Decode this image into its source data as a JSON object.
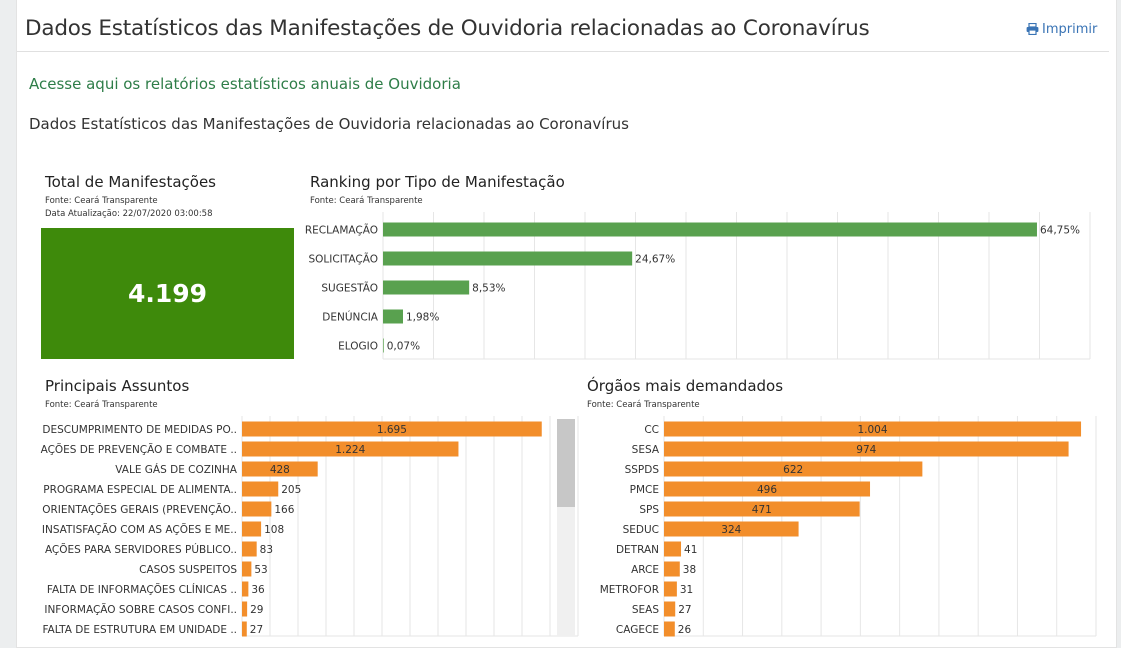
{
  "header": {
    "title": "Dados Estatísticos das Manifestações de Ouvidoria relacionadas ao Coronavírus",
    "print_label": "Imprimir"
  },
  "link_text": "Acesse aqui os relatórios estatísticos anuais de Ouvidoria",
  "subtitle": "Dados Estatísticos das Manifestações de Ouvidoria relacionadas ao Coronavírus",
  "total": {
    "title": "Total de Manifestações",
    "source": "Fonte: Ceará Transparente",
    "updated": "Data Atualização: 22/07/2020 03:00:58",
    "value": "4.199",
    "color": "#3e8a0b"
  },
  "ranking_meta": {
    "title": "Ranking por Tipo de Manifestação",
    "source": "Fonte: Ceará Transparente"
  },
  "assuntos_meta": {
    "title": "Principais Assuntos",
    "source": "Fonte: Ceará Transparente"
  },
  "orgaos_meta": {
    "title": "Órgãos mais demandados",
    "source": "Fonte: Ceará Transparente"
  },
  "chart_data": [
    {
      "type": "bar",
      "orientation": "horizontal",
      "title": "Ranking por Tipo de Manifestação",
      "categories": [
        "RECLAMAÇÃO",
        "SOLICITAÇÃO",
        "SUGESTÃO",
        "DENÚNCIA",
        "ELOGIO"
      ],
      "values": [
        64.75,
        24.67,
        8.53,
        1.98,
        0.07
      ],
      "labels": [
        "64,75%",
        "24,67%",
        "8,53%",
        "1,98%",
        "0,07%"
      ],
      "xlim": [
        0,
        70
      ],
      "color": "#59a14f",
      "grid": true
    },
    {
      "type": "bar",
      "orientation": "horizontal",
      "title": "Principais Assuntos",
      "categories": [
        "DESCUMPRIMENTO DE MEDIDAS PO..",
        "AÇÕES DE PREVENÇÃO E COMBATE ..",
        "VALE GÁS DE COZINHA",
        "PROGRAMA ESPECIAL DE ALIMENTA..",
        "ORIENTAÇÕES GERAIS (PREVENÇÃO..",
        "INSATISFAÇÃO COM AS AÇÕES E ME..",
        "AÇÕES PARA SERVIDORES PÚBLICO..",
        "CASOS SUSPEITOS",
        "FALTA DE INFORMAÇÕES CLÍNICAS ..",
        "INFORMAÇÃO SOBRE CASOS CONFI..",
        "FALTA DE ESTRUTURA EM UNIDADE .."
      ],
      "values": [
        1695,
        1224,
        428,
        205,
        166,
        108,
        83,
        53,
        36,
        29,
        27
      ],
      "labels": [
        "1.695",
        "1.224",
        "428",
        "205",
        "166",
        "108",
        "83",
        "53",
        "36",
        "29",
        "27"
      ],
      "xlim": [
        0,
        1900
      ],
      "color": "#f28e2b",
      "grid": true
    },
    {
      "type": "bar",
      "orientation": "horizontal",
      "title": "Órgãos mais demandados",
      "categories": [
        "CC",
        "SESA",
        "SSPDS",
        "PMCE",
        "SPS",
        "SEDUC",
        "DETRAN",
        "ARCE",
        "METROFOR",
        "SEAS",
        "CAGECE"
      ],
      "values": [
        1004,
        974,
        622,
        496,
        471,
        324,
        41,
        38,
        31,
        27,
        26
      ],
      "labels": [
        "1.004",
        "974",
        "622",
        "496",
        "471",
        "324",
        "41",
        "38",
        "31",
        "27",
        "26"
      ],
      "xlim": [
        0,
        1040
      ],
      "color": "#f28e2b",
      "grid": true
    }
  ]
}
